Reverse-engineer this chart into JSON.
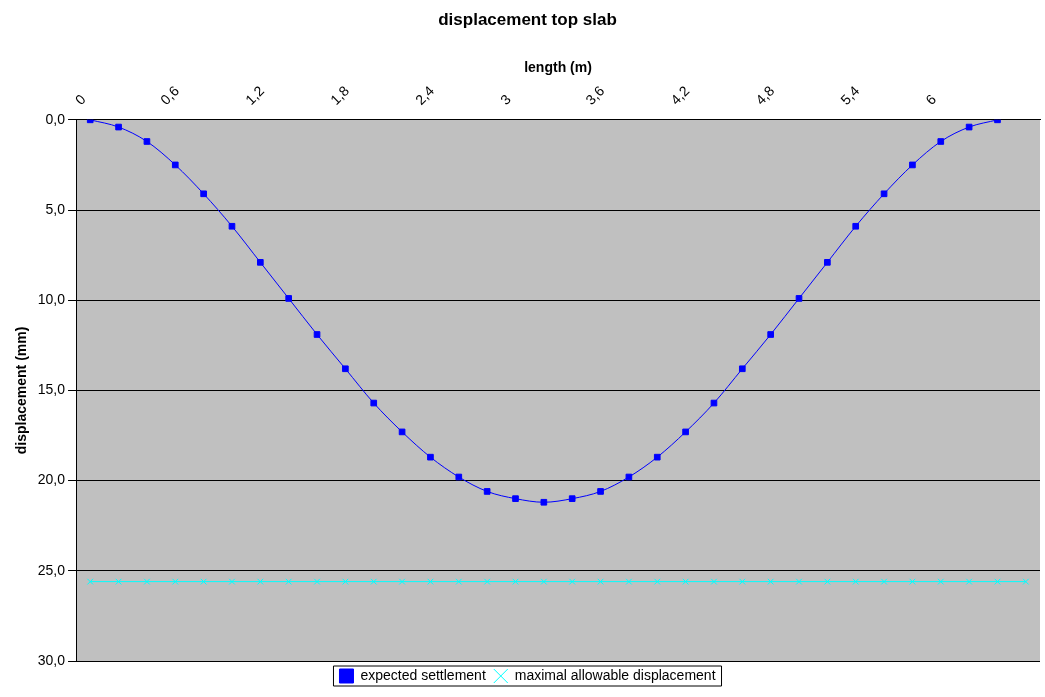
{
  "chart_data": {
    "type": "line",
    "title": "displacement top slab",
    "xlabel": "length (m)",
    "ylabel": "displacement (mm)",
    "categories": [
      "0",
      null,
      null,
      "0,6",
      null,
      null,
      "1,2",
      null,
      null,
      "1,8",
      null,
      null,
      "2,4",
      null,
      null,
      "3",
      null,
      null,
      "3,6",
      null,
      null,
      "4,2",
      null,
      null,
      "4,8",
      null,
      null,
      "5,4",
      null,
      null,
      "6",
      null,
      null,
      null
    ],
    "series": [
      {
        "name": "expected settlement",
        "color": "#0000ff",
        "marker": "square",
        "values": [
          0,
          0.4,
          1.2,
          2.5,
          4.1,
          5.9,
          7.9,
          9.9,
          11.9,
          13.8,
          15.7,
          17.3,
          18.7,
          19.8,
          20.6,
          21.0,
          21.2,
          21.0,
          20.6,
          19.8,
          18.7,
          17.3,
          15.7,
          13.8,
          11.9,
          9.9,
          7.9,
          5.9,
          4.1,
          2.5,
          1.2,
          0.4,
          0,
          null
        ]
      },
      {
        "name": "maximal allowable displacement",
        "color": "#00ffff",
        "marker": "cross",
        "values": [
          25.6,
          25.6,
          25.6,
          25.6,
          25.6,
          25.6,
          25.6,
          25.6,
          25.6,
          25.6,
          25.6,
          25.6,
          25.6,
          25.6,
          25.6,
          25.6,
          25.6,
          25.6,
          25.6,
          25.6,
          25.6,
          25.6,
          25.6,
          25.6,
          25.6,
          25.6,
          25.6,
          25.6,
          25.6,
          25.6,
          25.6,
          25.6,
          25.6,
          25.6
        ]
      }
    ],
    "ylim": [
      30,
      0
    ],
    "yticks": [
      {
        "value": 0,
        "label": "0,0"
      },
      {
        "value": 5,
        "label": "5,0"
      },
      {
        "value": 10,
        "label": "10,0"
      },
      {
        "value": 15,
        "label": "15,0"
      },
      {
        "value": 20,
        "label": "20,0"
      },
      {
        "value": 25,
        "label": "25,0"
      },
      {
        "value": 30,
        "label": "30,0"
      }
    ],
    "grid": "y",
    "legend": "bottom",
    "line_style": "solid"
  }
}
